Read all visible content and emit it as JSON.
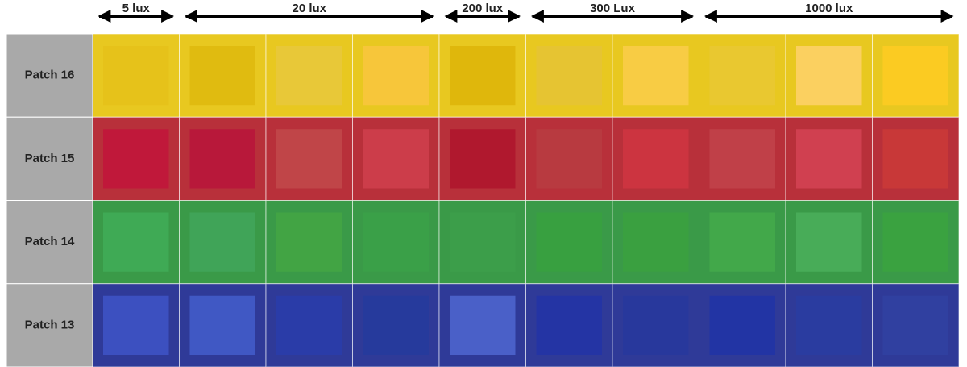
{
  "header": {
    "groups": [
      "5 lux",
      "20 lux",
      "200 lux",
      "300 Lux",
      "1000 lux"
    ]
  },
  "rows": [
    {
      "label": "Patch 16",
      "background": "#e8c820",
      "patches": [
        "#e6c21a",
        "#e0bb10",
        "#e8c838",
        "#f7c63a",
        "#dfb70c",
        "#e6c432",
        "#f8cc44",
        "#e9c830",
        "#fbd060",
        "#fbcb22"
      ]
    },
    {
      "label": "Patch 15",
      "background": "#b8303a",
      "patches": [
        "#c0183a",
        "#b8183a",
        "#c04548",
        "#cc3d4a",
        "#b0182e",
        "#b83a40",
        "#cc3440",
        "#c04048",
        "#d04050",
        "#c83838"
      ]
    },
    {
      "label": "Patch 14",
      "background": "#3a9a48",
      "patches": [
        "#3faa55",
        "#40a458",
        "#42a444",
        "#3aa048",
        "#3c9e4a",
        "#38a040",
        "#3aa040",
        "#42a84a",
        "#48ac58",
        "#3aa240"
      ]
    },
    {
      "label": "Patch 13",
      "background": "#2f3a98",
      "patches": [
        "#3c50c0",
        "#4058c4",
        "#2a3ca8",
        "#263a9c",
        "#4a60c8",
        "#2434a4",
        "#28389c",
        "#2234a4",
        "#2a3ca0",
        "#3040a0"
      ]
    }
  ]
}
